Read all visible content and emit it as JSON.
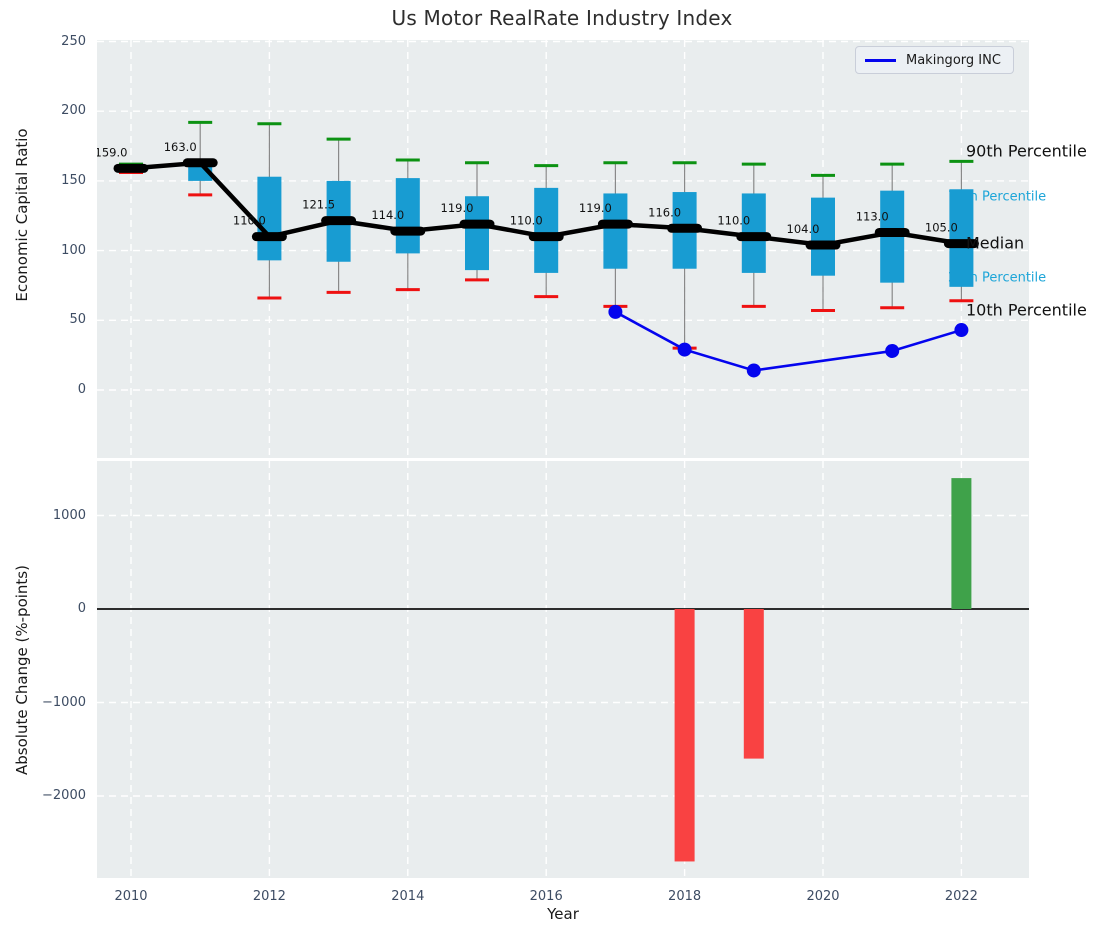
{
  "figure_title": "Us Motor RealRate Industry Index",
  "colors": {
    "panel_background": "#e9edee",
    "grid": "#ffffff",
    "box_fill": "#189cd2",
    "p90_cap": "#0c9212",
    "p10_cap": "#ee1111",
    "whisker": "#898989",
    "median_line": "#000000",
    "company_line": "#0404ee",
    "bar_positive": "#3fa24a",
    "bar_negative": "#f94242",
    "tick_text": "#3d4c63",
    "percentile_label_cyan": "#1ca5d8",
    "zero_line": "#111111"
  },
  "chart_data": [
    {
      "type": "boxplot",
      "title": "Us Motor RealRate Industry Index",
      "ylabel": "Economic Capital Ratio",
      "ylim": [
        -49,
        251
      ],
      "yticks": [
        0,
        50,
        100,
        150,
        200,
        250
      ],
      "xticks": [
        2010,
        2012,
        2014,
        2016,
        2018,
        2020,
        2022
      ],
      "grid": true,
      "legend": {
        "position": "upper right",
        "entries": [
          {
            "label": "Makingorg INC",
            "color": "#0404ee"
          }
        ]
      },
      "percentile_labels": [
        {
          "text": "90th Percentile",
          "color": "black"
        },
        {
          "text": "75th Percentile",
          "color": "cyan"
        },
        {
          "text": "Median",
          "color": "black"
        },
        {
          "text": "25th Percentile",
          "color": "cyan"
        },
        {
          "text": "10th Percentile",
          "color": "black"
        }
      ],
      "boxes": [
        {
          "year": 2010,
          "p90": 162,
          "p75": 160,
          "median": 159,
          "p25": 156,
          "p10": 156,
          "label": "159.0"
        },
        {
          "year": 2011,
          "p90": 192,
          "p75": 164,
          "median": 163,
          "p25": 150,
          "p10": 140,
          "label": "163.0"
        },
        {
          "year": 2012,
          "p90": 191,
          "p75": 153,
          "median": 110,
          "p25": 93,
          "p10": 66,
          "label": "110.0"
        },
        {
          "year": 2013,
          "p90": 180,
          "p75": 150,
          "median": 121.5,
          "p25": 92,
          "p10": 70,
          "label": "121.5"
        },
        {
          "year": 2014,
          "p90": 165,
          "p75": 152,
          "median": 114,
          "p25": 98,
          "p10": 72,
          "label": "114.0"
        },
        {
          "year": 2015,
          "p90": 163,
          "p75": 139,
          "median": 119,
          "p25": 86,
          "p10": 79,
          "label": "119.0"
        },
        {
          "year": 2016,
          "p90": 161,
          "p75": 145,
          "median": 110,
          "p25": 84,
          "p10": 67,
          "label": "110.0"
        },
        {
          "year": 2017,
          "p90": 163,
          "p75": 141,
          "median": 119,
          "p25": 87,
          "p10": 60,
          "label": "119.0"
        },
        {
          "year": 2018,
          "p90": 163,
          "p75": 142,
          "median": 116,
          "p25": 87,
          "p10": 30,
          "label": "116.0"
        },
        {
          "year": 2019,
          "p90": 162,
          "p75": 141,
          "median": 110,
          "p25": 84,
          "p10": 60,
          "label": "110.0"
        },
        {
          "year": 2020,
          "p90": 154,
          "p75": 138,
          "median": 104,
          "p25": 82,
          "p10": 57,
          "label": "104.0"
        },
        {
          "year": 2021,
          "p90": 162,
          "p75": 143,
          "median": 113,
          "p25": 77,
          "p10": 59,
          "label": "113.0"
        },
        {
          "year": 2022,
          "p90": 164,
          "p75": 144,
          "median": 105,
          "p25": 74,
          "p10": 64,
          "label": "105.0"
        }
      ],
      "company_series": {
        "name": "Makingorg INC",
        "points": [
          [
            2017,
            56
          ],
          [
            2018,
            29
          ],
          [
            2019,
            14
          ],
          [
            2021,
            28
          ],
          [
            2022,
            43
          ]
        ]
      }
    },
    {
      "type": "bar",
      "ylabel": "Absolute Change (%-points)",
      "xlabel": "Year",
      "ylim": [
        -2877,
        1583
      ],
      "yticks": [
        1000,
        0,
        -1000,
        -2000
      ],
      "xticks": [
        2010,
        2012,
        2014,
        2016,
        2018,
        2020,
        2022
      ],
      "grid": true,
      "bars": [
        {
          "year": 2018,
          "value": -2700
        },
        {
          "year": 2019,
          "value": -1600
        },
        {
          "year": 2022,
          "value": 1400
        }
      ]
    }
  ]
}
